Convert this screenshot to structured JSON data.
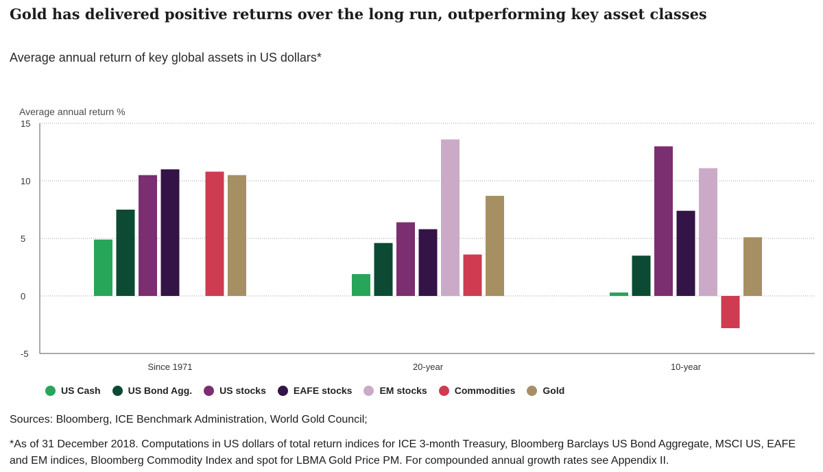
{
  "title": "Gold has delivered positive returns over the long run, outperforming key asset classes",
  "subtitle": "Average annual return of key global assets in US dollars*",
  "chart_data": {
    "type": "bar",
    "ylabel": "Average annual return %",
    "ylim": [
      -5,
      15
    ],
    "yticks": [
      15,
      10,
      5,
      0,
      -5
    ],
    "grid": true,
    "legend_position": "bottom",
    "categories": [
      "Since 1971",
      "20-year",
      "10-year"
    ],
    "series": [
      {
        "name": "US Cash",
        "color": "#27a559",
        "values": [
          4.9,
          1.9,
          0.3
        ]
      },
      {
        "name": "US Bond Agg.",
        "color": "#0c4a34",
        "values": [
          7.5,
          4.6,
          3.5
        ]
      },
      {
        "name": "US stocks",
        "color": "#7b2e70",
        "values": [
          10.5,
          6.4,
          13.0
        ]
      },
      {
        "name": "EAFE stocks",
        "color": "#341347",
        "values": [
          11.0,
          5.8,
          7.4
        ]
      },
      {
        "name": "EM stocks",
        "color": "#cbaac8",
        "values": [
          null,
          13.6,
          11.1
        ]
      },
      {
        "name": "Commodities",
        "color": "#cf3b50",
        "values": [
          10.8,
          3.6,
          -2.8
        ]
      },
      {
        "name": "Gold",
        "color": "#a69063",
        "values": [
          10.5,
          8.7,
          5.1
        ]
      }
    ]
  },
  "sources": "Sources: Bloomberg, ICE Benchmark Administration, World Gold Council;",
  "note": "*As of 31 December 2018. Computations in US dollars of total return indices for ICE 3-month Treasury, Bloomberg Barclays US Bond Aggregate, MSCI US, EAFE and EM indices, Bloomberg Commodity Index and spot for LBMA Gold Price PM. For compounded annual growth rates see Appendix II."
}
